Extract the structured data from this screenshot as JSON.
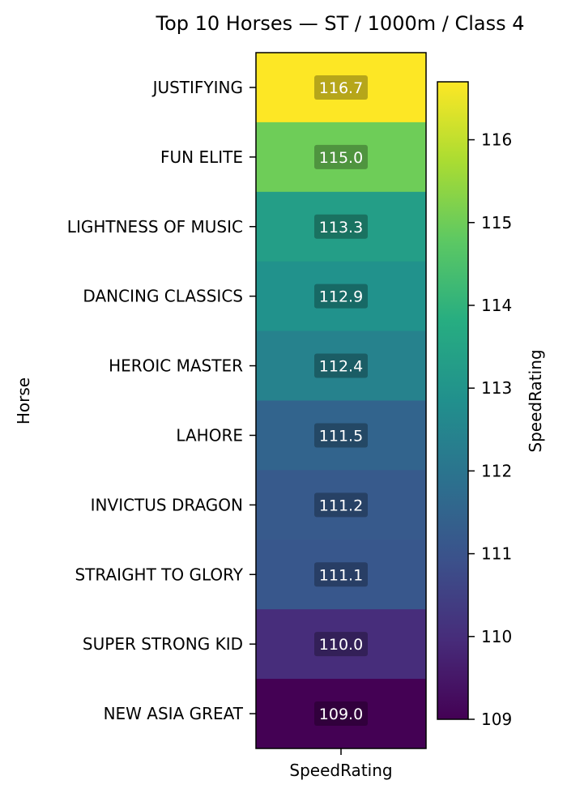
{
  "chart_data": {
    "type": "heatmap",
    "title": "Top 10 Horses — ST / 1000m / Class 4",
    "xlabel": "",
    "ylabel": "Horse",
    "column_label": "SpeedRating",
    "categories": [
      "JUSTIFYING",
      "FUN ELITE",
      "LIGHTNESS OF MUSIC",
      "DANCING CLASSICS",
      "HEROIC MASTER",
      "LAHORE",
      "INVICTUS DRAGON",
      "STRAIGHT TO GLORY",
      "SUPER STRONG KID",
      "NEW ASIA GREAT"
    ],
    "values": [
      116.7,
      115.0,
      113.3,
      112.9,
      112.4,
      111.5,
      111.2,
      111.1,
      110.0,
      109.0
    ],
    "value_labels": [
      "116.7",
      "115.0",
      "113.3",
      "112.9",
      "112.4",
      "111.5",
      "111.2",
      "111.1",
      "110.0",
      "109.0"
    ],
    "colormap": "viridis",
    "colorbar": {
      "label": "SpeedRating",
      "range": [
        109.0,
        116.7
      ],
      "ticks": [
        109,
        110,
        111,
        112,
        113,
        114,
        115,
        116
      ],
      "tick_labels": [
        "109",
        "110",
        "111",
        "112",
        "113",
        "114",
        "115",
        "116"
      ]
    },
    "legend_position": "right"
  }
}
